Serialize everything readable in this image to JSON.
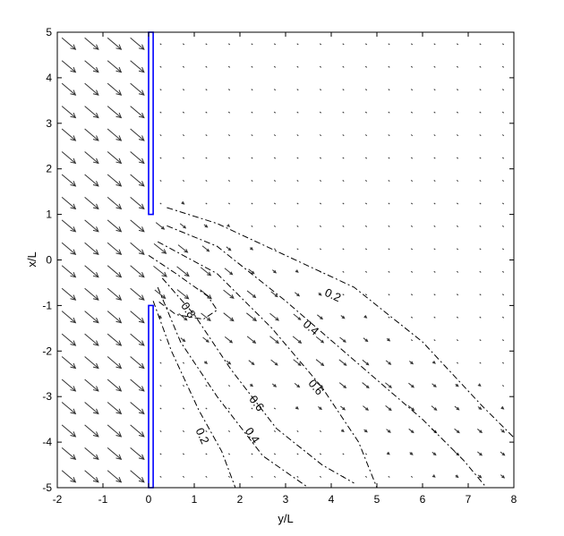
{
  "chart_data": {
    "type": "quiver-contour",
    "title": "",
    "xlabel": "y/L",
    "ylabel": "x/L",
    "xlim": [
      -2,
      8
    ],
    "ylim": [
      -5,
      5
    ],
    "xticks": [
      "-2",
      "-1",
      "0",
      "1",
      "2",
      "3",
      "4",
      "5",
      "6",
      "7",
      "8"
    ],
    "yticks": [
      "-5",
      "-4",
      "-3",
      "-2",
      "-1",
      "0",
      "1",
      "2",
      "3",
      "4",
      "5"
    ],
    "grid": false,
    "wall_color": "#0000ff",
    "arrow_color": "#333333",
    "walls": [
      {
        "y_from": 0.0,
        "y_to": 0.1,
        "x_from": 1.0,
        "x_to": 5.0
      },
      {
        "y_from": 0.0,
        "y_to": 0.1,
        "x_from": -5.0,
        "x_to": -1.0
      }
    ],
    "contours": [
      {
        "level": "0.2",
        "label_at": [
          4.0,
          -0.85
        ],
        "points": [
          [
            0.4,
            1.15
          ],
          [
            1.5,
            0.8
          ],
          [
            3.0,
            0.1
          ],
          [
            4.5,
            -0.6
          ],
          [
            6.0,
            -1.8
          ],
          [
            7.3,
            -3.2
          ],
          [
            8.0,
            -3.9
          ]
        ]
      },
      {
        "level": "0.2",
        "label_at": [
          1.1,
          -3.9
        ],
        "points": [
          [
            0.1,
            -0.9
          ],
          [
            0.5,
            -2.0
          ],
          [
            1.1,
            -3.3
          ],
          [
            1.6,
            -4.2
          ],
          [
            1.9,
            -5.0
          ]
        ]
      },
      {
        "level": "0.4",
        "label_at": [
          3.5,
          -1.55
        ],
        "points": [
          [
            0.4,
            0.75
          ],
          [
            1.5,
            0.3
          ],
          [
            3.0,
            -0.9
          ],
          [
            4.5,
            -2.2
          ],
          [
            6.0,
            -3.5
          ],
          [
            6.9,
            -4.4
          ],
          [
            7.4,
            -5.0
          ]
        ]
      },
      {
        "level": "0.4",
        "label_at": [
          2.2,
          -3.9
        ],
        "points": [
          [
            0.2,
            -0.6
          ],
          [
            0.7,
            -1.8
          ],
          [
            1.5,
            -3.0
          ],
          [
            2.5,
            -4.3
          ],
          [
            3.5,
            -5.0
          ]
        ]
      },
      {
        "level": "0.6",
        "label_at": [
          3.6,
          -2.85
        ],
        "points": [
          [
            0.2,
            0.4
          ],
          [
            1.5,
            -0.3
          ],
          [
            2.7,
            -1.5
          ],
          [
            3.8,
            -2.8
          ],
          [
            4.6,
            -4.0
          ],
          [
            5.0,
            -5.0
          ]
        ]
      },
      {
        "level": "0.6",
        "label_at": [
          2.3,
          -3.2
        ],
        "points": [
          [
            0.3,
            -0.4
          ],
          [
            1.0,
            -1.2
          ],
          [
            1.8,
            -2.4
          ],
          [
            2.8,
            -3.7
          ],
          [
            3.8,
            -4.5
          ],
          [
            4.5,
            -4.9
          ]
        ]
      },
      {
        "level": "0.8",
        "label_at": [
          0.8,
          -1.15
        ],
        "points": [
          [
            0.0,
            0.1
          ],
          [
            0.6,
            -0.3
          ],
          [
            1.3,
            -0.8
          ],
          [
            1.5,
            -1.1
          ],
          [
            1.2,
            -1.3
          ],
          [
            0.6,
            -1.2
          ],
          [
            0.2,
            -0.9
          ]
        ]
      }
    ]
  }
}
